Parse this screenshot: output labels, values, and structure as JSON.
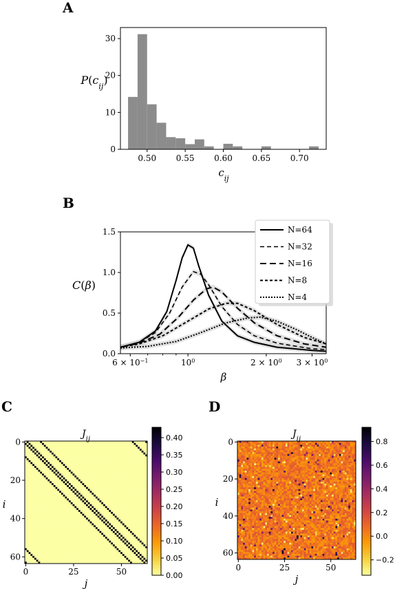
{
  "colors": {
    "hist_bar": "#8c8c8c",
    "band": "#c8c8c8",
    "line": "#000000",
    "matrix_bg": "#fafaa0",
    "matrix_dark": "#000000"
  },
  "chart_data": [
    {
      "panel": "A",
      "type": "bar",
      "xlabel": "c_ij",
      "ylabel": "P(c_ij)",
      "xlim": [
        0.465,
        0.735
      ],
      "ylim": [
        0,
        33
      ],
      "xticks": [
        0.5,
        0.55,
        0.6,
        0.65,
        0.7
      ],
      "xtick_labels": [
        "0.50",
        "0.55",
        "0.60",
        "0.65",
        "0.70"
      ],
      "yticks": [
        0,
        10,
        20,
        30
      ],
      "ytick_labels": [
        "0",
        "10",
        "20",
        "30"
      ],
      "bin_width": 0.0125,
      "bins": [
        {
          "x": 0.475,
          "v": 14.2
        },
        {
          "x": 0.4875,
          "v": 31.2
        },
        {
          "x": 0.5,
          "v": 12.2
        },
        {
          "x": 0.5125,
          "v": 7.2
        },
        {
          "x": 0.525,
          "v": 3.3
        },
        {
          "x": 0.5375,
          "v": 3.0
        },
        {
          "x": 0.55,
          "v": 1.4
        },
        {
          "x": 0.5625,
          "v": 2.7
        },
        {
          "x": 0.575,
          "v": 0.8
        },
        {
          "x": 0.6,
          "v": 1.5
        },
        {
          "x": 0.6125,
          "v": 0.8
        },
        {
          "x": 0.65,
          "v": 0.8
        },
        {
          "x": 0.7125,
          "v": 0.8
        }
      ]
    },
    {
      "panel": "B",
      "type": "line",
      "xscale": "log",
      "xlabel": "β",
      "ylabel": "C(β)",
      "xlim": [
        0.55,
        3.4
      ],
      "ylim": [
        0,
        1.5
      ],
      "yticks": [
        0.0,
        0.5,
        1.0,
        1.5
      ],
      "ytick_labels": [
        "0.0",
        "0.5",
        "1.0",
        "1.5"
      ],
      "xticks": [
        {
          "v": 0.6,
          "base": "6 × 10",
          "exp": "−1"
        },
        {
          "v": 1.0,
          "base": "10",
          "exp": "0"
        },
        {
          "v": 2.0,
          "base": "2 × 10",
          "exp": "0"
        },
        {
          "v": 3.0,
          "base": "3 × 10",
          "exp": "0"
        }
      ],
      "legend_position": "top-right",
      "series": [
        {
          "name": "N=64",
          "dash": "",
          "width": 2,
          "points": [
            [
              0.55,
              0.08
            ],
            [
              0.65,
              0.14
            ],
            [
              0.75,
              0.28
            ],
            [
              0.83,
              0.52
            ],
            [
              0.9,
              0.9
            ],
            [
              0.95,
              1.18
            ],
            [
              1.0,
              1.34
            ],
            [
              1.05,
              1.3
            ],
            [
              1.1,
              1.08
            ],
            [
              1.2,
              0.72
            ],
            [
              1.35,
              0.4
            ],
            [
              1.55,
              0.22
            ],
            [
              1.8,
              0.14
            ],
            [
              2.2,
              0.08
            ],
            [
              3.0,
              0.04
            ],
            [
              3.4,
              0.03
            ]
          ]
        },
        {
          "name": "N=32",
          "dash": "6,4",
          "width": 1.6,
          "points": [
            [
              0.55,
              0.08
            ],
            [
              0.65,
              0.14
            ],
            [
              0.75,
              0.26
            ],
            [
              0.85,
              0.5
            ],
            [
              0.95,
              0.82
            ],
            [
              1.05,
              1.01
            ],
            [
              1.12,
              0.98
            ],
            [
              1.2,
              0.85
            ],
            [
              1.35,
              0.58
            ],
            [
              1.55,
              0.36
            ],
            [
              1.8,
              0.22
            ],
            [
              2.2,
              0.13
            ],
            [
              3.0,
              0.06
            ],
            [
              3.4,
              0.05
            ]
          ]
        },
        {
          "name": "N=16",
          "dash": "9,5",
          "width": 2,
          "points": [
            [
              0.55,
              0.08
            ],
            [
              0.65,
              0.13
            ],
            [
              0.78,
              0.24
            ],
            [
              0.92,
              0.45
            ],
            [
              1.05,
              0.66
            ],
            [
              1.18,
              0.8
            ],
            [
              1.25,
              0.82
            ],
            [
              1.35,
              0.76
            ],
            [
              1.55,
              0.56
            ],
            [
              1.8,
              0.38
            ],
            [
              2.2,
              0.22
            ],
            [
              2.8,
              0.12
            ],
            [
              3.4,
              0.08
            ]
          ]
        },
        {
          "name": "N=8",
          "dash": "4,3",
          "width": 2,
          "points": [
            [
              0.55,
              0.08
            ],
            [
              0.65,
              0.12
            ],
            [
              0.8,
              0.22
            ],
            [
              1.0,
              0.4
            ],
            [
              1.2,
              0.55
            ],
            [
              1.4,
              0.62
            ],
            [
              1.55,
              0.62
            ],
            [
              1.8,
              0.53
            ],
            [
              2.2,
              0.36
            ],
            [
              2.8,
              0.2
            ],
            [
              3.4,
              0.12
            ]
          ]
        },
        {
          "name": "N=4",
          "dash": "2,2",
          "width": 2,
          "points": [
            [
              0.55,
              0.07
            ],
            [
              0.7,
              0.09
            ],
            [
              0.9,
              0.15
            ],
            [
              1.1,
              0.25
            ],
            [
              1.4,
              0.38
            ],
            [
              1.7,
              0.44
            ],
            [
              1.9,
              0.45
            ],
            [
              2.2,
              0.4
            ],
            [
              2.6,
              0.3
            ],
            [
              3.0,
              0.2
            ],
            [
              3.4,
              0.12
            ]
          ]
        }
      ]
    },
    {
      "panel": "C",
      "type": "heatmap",
      "title": "J_ij",
      "n": 64,
      "xlabel": "j",
      "ylabel": "i",
      "xticks": [
        0,
        25,
        50
      ],
      "yticks": [
        0,
        20,
        40,
        60
      ],
      "colorbar_ticks": [
        "0.00",
        "0.05",
        "0.10",
        "0.15",
        "0.20",
        "0.25",
        "0.30",
        "0.35",
        "0.40"
      ],
      "colorbar_range": [
        0,
        0.43
      ],
      "structure": "banded coupling: ones at |i−j| = 1, 8, 56, 63 (periodic 8×8 lattice)"
    },
    {
      "panel": "D",
      "type": "heatmap",
      "title": "J_ij",
      "n": 64,
      "xlabel": "j",
      "ylabel": "i",
      "xticks": [
        0,
        25,
        50
      ],
      "yticks": [
        0,
        20,
        40,
        60
      ],
      "colorbar_ticks": [
        "−0.2",
        "0.0",
        "0.2",
        "0.4",
        "0.6",
        "0.8"
      ],
      "colorbar_range": [
        -0.33,
        0.92
      ],
      "structure": "random couplings, mostly in [−0.1, 0.2] with sparse larger values"
    }
  ]
}
